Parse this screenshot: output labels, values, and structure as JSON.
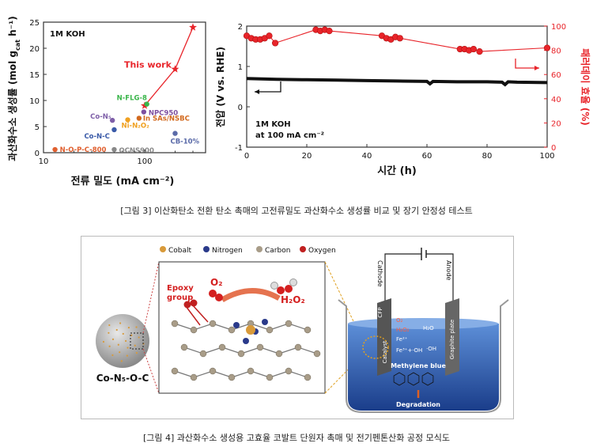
{
  "figure3_caption": "[그림 3] 이산화탄소 전환 탄소 촉매의 고전류밀도 과산화수소 생성률 비교 및 장기 안정성 테스트",
  "figure4_caption": "[그림 4] 과산화수소 생성용 고효율 코발트 단원자 촉매 및 전기펜톤산화 공정 모식도",
  "chart_data": [
    {
      "type": "scatter",
      "panel_label": "1M KOH",
      "xlabel": "전류 밀도 (mA cm⁻²)",
      "ylabel": "과산화수소 생성률 (mol g",
      "ylabel_sub": "cat",
      "ylabel_tail": " h⁻¹)",
      "xscale": "log",
      "xlim": [
        10,
        400
      ],
      "ylim": [
        0,
        25
      ],
      "yticks": [
        "0",
        "5",
        "10",
        "15",
        "20",
        "25"
      ],
      "xticks": [
        "10",
        "100"
      ],
      "this_work": {
        "label": "This work",
        "color": "#e8242a",
        "x": [
          100,
          200,
          300
        ],
        "y": [
          9,
          16,
          24
        ]
      },
      "references": [
        {
          "label": "N-FLG-8",
          "x": 105,
          "y": 9.3,
          "color": "#3ab54a"
        },
        {
          "label": "NPC950",
          "x": 98,
          "y": 7.8,
          "color": "#7e4fa0"
        },
        {
          "label": "Co-N₅",
          "x": 48,
          "y": 6.2,
          "color": "#7e5fa8"
        },
        {
          "label": "In SAs/NSBC",
          "x": 88,
          "y": 6.6,
          "color": "#d2691e"
        },
        {
          "label": "Ni-N₂O₂",
          "x": 68,
          "y": 6.3,
          "color": "#f0a020"
        },
        {
          "label": "Co-N-C",
          "x": 50,
          "y": 4.4,
          "color": "#3b5ba8"
        },
        {
          "label": "CB-10%",
          "x": 200,
          "y": 3.7,
          "color": "#5a6aa8"
        },
        {
          "label": "N-O-P-C-800",
          "x": 13,
          "y": 0.6,
          "color": "#e06030"
        },
        {
          "label": "OCNS900",
          "x": 50,
          "y": 0.6,
          "color": "#888888"
        }
      ]
    },
    {
      "type": "line",
      "annotation": "1M KOH",
      "annotation2": "at 100 mA cm⁻²",
      "xlabel": "시간 (h)",
      "ylabel_left": "전압 (V vs. RHE)",
      "ylabel_right": "패러데이 효율 (%)",
      "xlim": [
        0,
        100
      ],
      "ylim_left": [
        -1,
        2
      ],
      "ylim_right": [
        0,
        100
      ],
      "xticks": [
        "0",
        "20",
        "40",
        "60",
        "80",
        "100"
      ],
      "yticks_left": [
        "-1",
        "0",
        "1",
        "2"
      ],
      "yticks_right": [
        "0",
        "20",
        "40",
        "60",
        "80",
        "100"
      ],
      "voltage_series": {
        "x": [
          0,
          10,
          20,
          30,
          40,
          50,
          60,
          61,
          62,
          70,
          80,
          85,
          86,
          87,
          90,
          100
        ],
        "y": [
          0.7,
          0.68,
          0.67,
          0.66,
          0.65,
          0.64,
          0.63,
          0.57,
          0.63,
          0.62,
          0.62,
          0.61,
          0.55,
          0.62,
          0.61,
          0.6
        ],
        "color": "#111111"
      },
      "fe_series": {
        "x": [
          0,
          1.5,
          3,
          4.5,
          6,
          7.5,
          9.5,
          23,
          24.5,
          26,
          27.5,
          45,
          46.5,
          48,
          49.5,
          51,
          71,
          72.5,
          74,
          75.5,
          77.5,
          100
        ],
        "y": [
          92,
          90,
          89,
          89,
          90,
          92,
          86,
          97,
          96,
          97,
          96,
          92,
          90,
          89,
          91,
          90,
          81,
          81,
          80,
          81,
          79,
          82
        ],
        "color": "#e8242a"
      }
    }
  ],
  "figure4": {
    "legend": [
      "Cobalt",
      "Nitrogen",
      "Carbon",
      "Oxygen"
    ],
    "legend_colors": [
      "#d89a3a",
      "#2a3a8a",
      "#a89c88",
      "#c02020"
    ],
    "catalyst_label": "Co-N₅-O-C",
    "epoxy_label": "Epoxy",
    "epoxy_label2": "group",
    "o2_label": "O₂",
    "h2o2_label": "H₂O₂",
    "cathode_label": "Cathode",
    "anode_label": "Anode",
    "cfp_label": "CFP",
    "graphite_label": "Graphite plate",
    "catalyst_electrode": "Catalyst",
    "o2_small": "O₂",
    "h2o2_small": "H₂O₂",
    "h2o_label": "H₂O",
    "fe2_label": "Fe²⁺",
    "fe3_label": "Fe³⁺+·OH",
    "oh_label": "·OH",
    "methylene_label": "Methylene blue",
    "degradation_label": "Degradation"
  }
}
